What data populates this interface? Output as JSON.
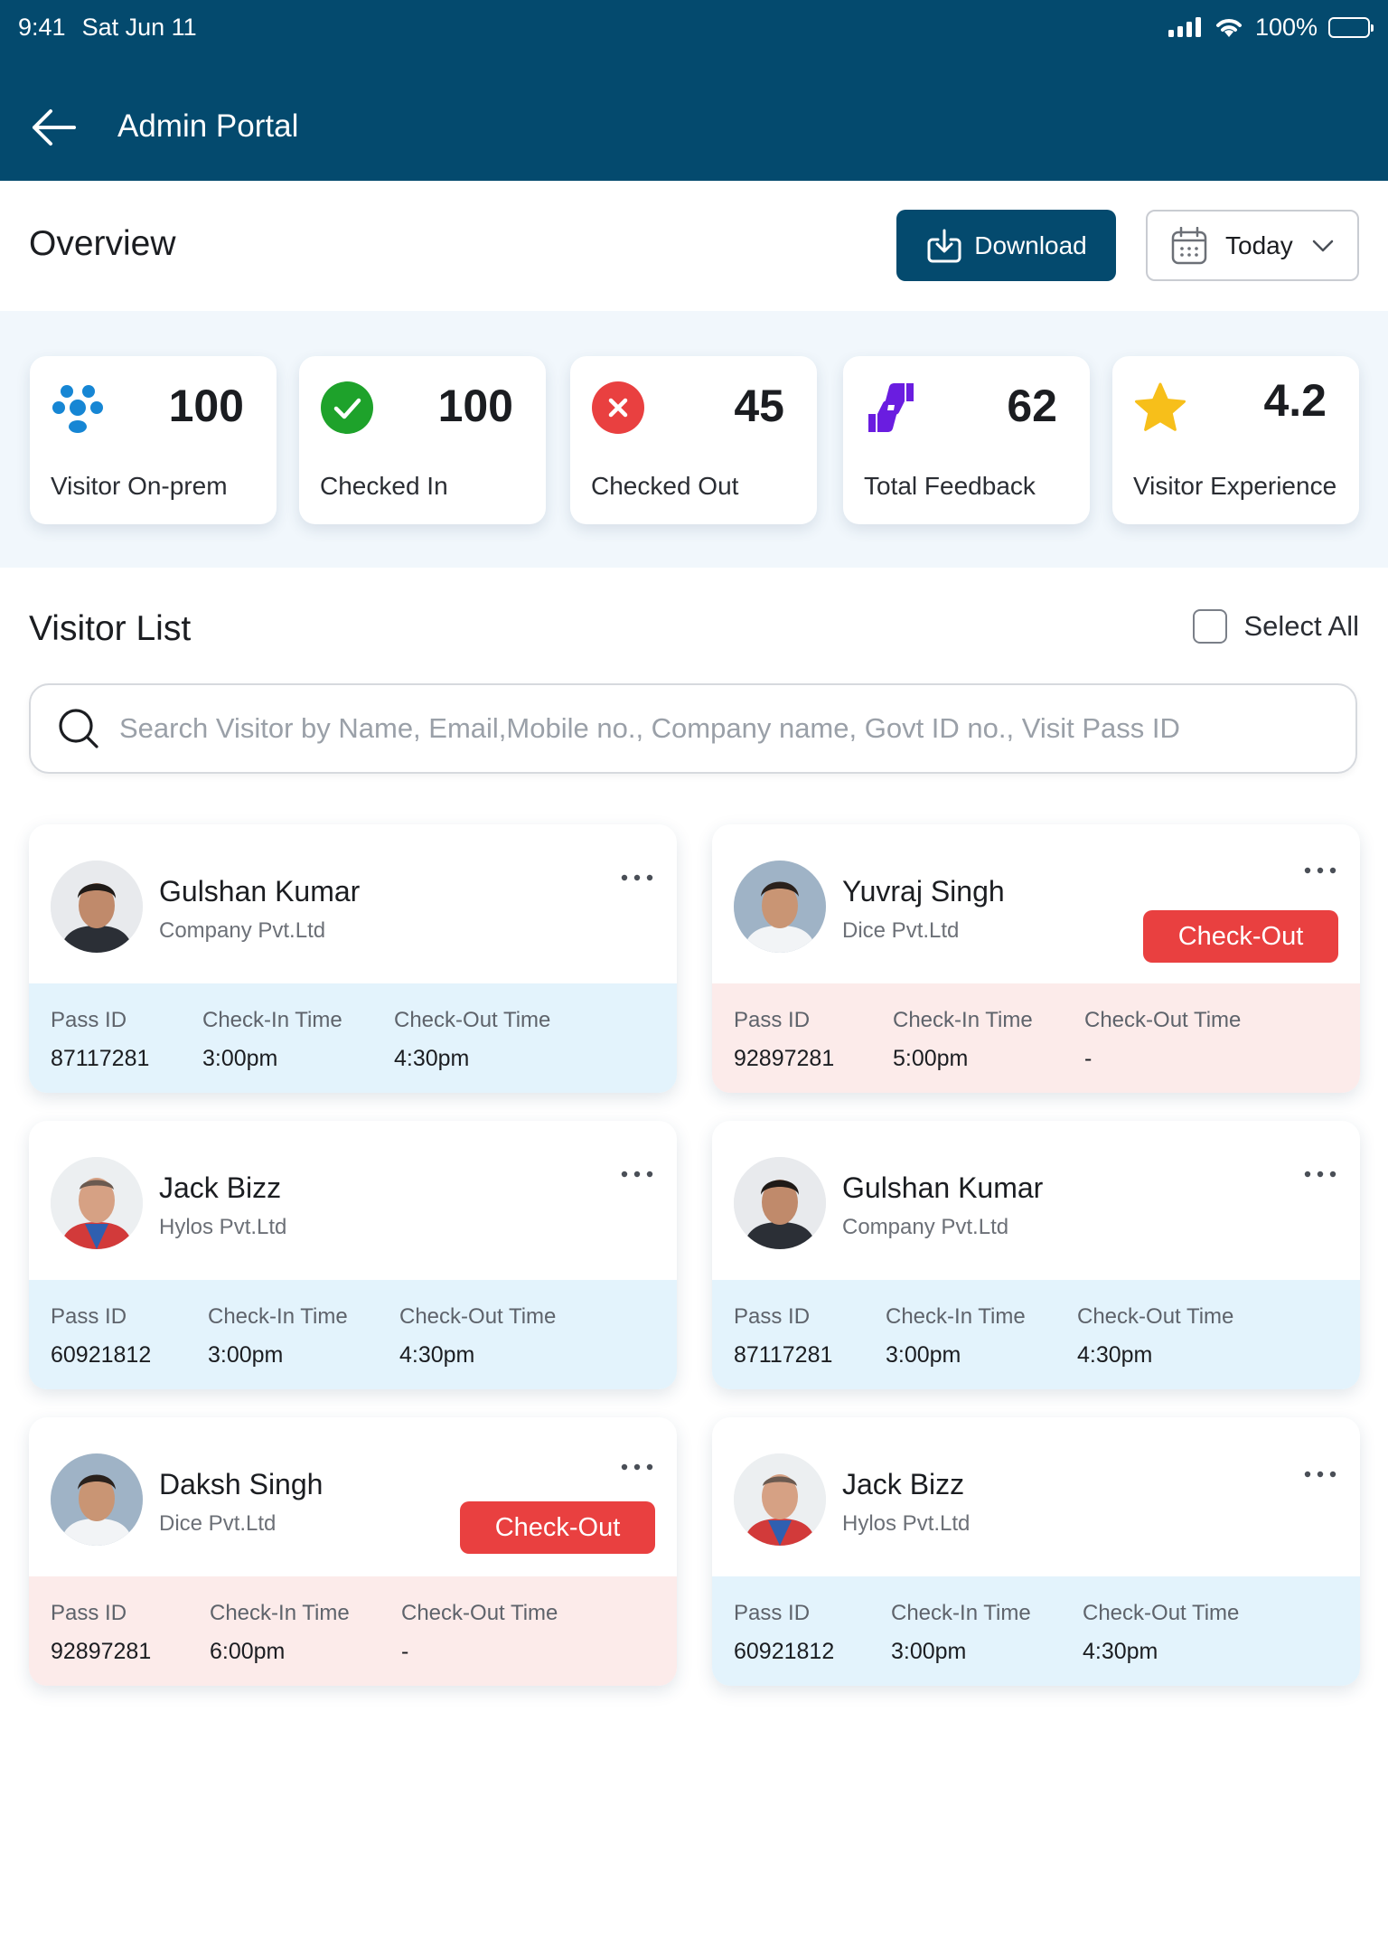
{
  "status_bar": {
    "time": "9:41",
    "date": "Sat Jun 11",
    "battery": "100%"
  },
  "app_bar": {
    "title": "Admin Portal"
  },
  "overview": {
    "title": "Overview",
    "download_label": "Download",
    "date_filter": "Today"
  },
  "stats": [
    {
      "icon": "visitors-icon",
      "value": "100",
      "label": "Visitor On-prem",
      "color": "#1686d4"
    },
    {
      "icon": "check-circle-icon",
      "value": "100",
      "label": "Checked In",
      "color": "#1ea22b"
    },
    {
      "icon": "x-circle-icon",
      "value": "45",
      "label": "Checked Out",
      "color": "#e94040"
    },
    {
      "icon": "thumbs-feedback-icon",
      "value": "62",
      "label": "Total Feedback",
      "color": "#6a1de0"
    },
    {
      "icon": "star-icon",
      "value": "4.2",
      "label": "Visitor Experience",
      "color": "#f7bf1a"
    }
  ],
  "visitor_list": {
    "title": "Visitor List",
    "select_all_label": "Select All",
    "search_placeholder": "Search Visitor by Name, Email,Mobile no., Company name, Govt ID no., Visit Pass ID",
    "column_labels": {
      "pass_id": "Pass ID",
      "check_in": "Check-In Time",
      "check_out": "Check-Out Time"
    },
    "checkout_label": "Check-Out",
    "visitors": [
      {
        "name": "Gulshan Kumar",
        "company": "Company Pvt.Ltd",
        "pass_id": "87117281",
        "check_in": "3:00pm",
        "check_out": "4:30pm",
        "pending_checkout": false
      },
      {
        "name": "Yuvraj Singh",
        "company": "Dice Pvt.Ltd",
        "pass_id": "92897281",
        "check_in": "5:00pm",
        "check_out": "-",
        "pending_checkout": true
      },
      {
        "name": "Jack Bizz",
        "company": "Hylos Pvt.Ltd",
        "pass_id": "60921812",
        "check_in": "3:00pm",
        "check_out": "4:30pm",
        "pending_checkout": false
      },
      {
        "name": "Gulshan Kumar",
        "company": "Company Pvt.Ltd",
        "pass_id": "87117281",
        "check_in": "3:00pm",
        "check_out": "4:30pm",
        "pending_checkout": false
      },
      {
        "name": "Daksh Singh",
        "company": "Dice Pvt.Ltd",
        "pass_id": "92897281",
        "check_in": "6:00pm",
        "check_out": "-",
        "pending_checkout": true
      },
      {
        "name": "Jack Bizz",
        "company": "Hylos Pvt.Ltd",
        "pass_id": "60921812",
        "check_in": "3:00pm",
        "check_out": "4:30pm",
        "pending_checkout": false
      }
    ]
  },
  "colors": {
    "brand": "#044a6e",
    "danger": "#e94040",
    "info_bg": "#e3f3fc",
    "alert_bg": "#fcebea"
  }
}
